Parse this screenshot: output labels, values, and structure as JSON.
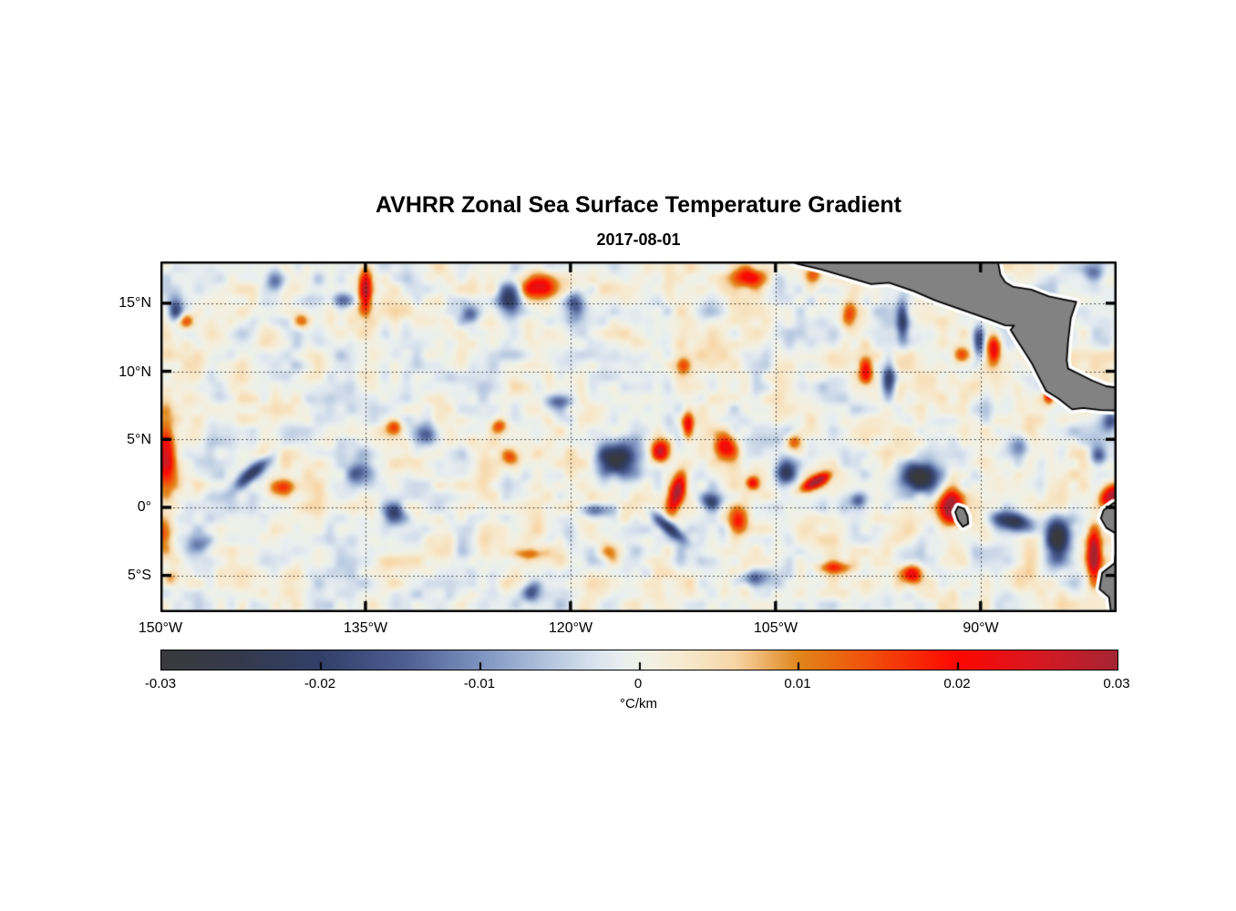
{
  "chart_data": {
    "type": "heatmap",
    "title": "AVHRR Zonal Sea Surface Temperature Gradient",
    "subtitle": "2017-08-01",
    "value_units": "°C/km",
    "value_range": [
      -0.03,
      0.03
    ],
    "extent": {
      "lon_min": -150,
      "lon_max": -80.05,
      "lat_min": -7.7,
      "lat_max": 18.07
    },
    "x_axis": {
      "ticks": [
        {
          "lon": -150,
          "label": "150°W"
        },
        {
          "lon": -135,
          "label": "135°W"
        },
        {
          "lon": -120,
          "label": "120°W"
        },
        {
          "lon": -105,
          "label": "105°W"
        },
        {
          "lon": -90,
          "label": "90°W"
        }
      ]
    },
    "y_axis": {
      "ticks": [
        {
          "lat": 15,
          "label": "15°N"
        },
        {
          "lat": 10,
          "label": "10°N"
        },
        {
          "lat": 5,
          "label": "5°N"
        },
        {
          "lat": 0,
          "label": "0°"
        },
        {
          "lat": -5,
          "label": "5°S"
        }
      ]
    },
    "grid": {
      "lon_lines": [
        -135,
        -120,
        -105,
        -90
      ],
      "lat_lines": [
        15,
        10,
        5,
        0,
        -5
      ]
    },
    "colorbar": {
      "tick_labels": [
        "-0.03",
        "-0.02",
        "-0.01",
        "0",
        "0.01",
        "0.02",
        "0.03"
      ],
      "tick_values": [
        -0.03,
        -0.02,
        -0.01,
        0,
        0.01,
        0.02,
        0.03
      ],
      "interior_tick_values": [
        -0.02,
        -0.01,
        0,
        0.01,
        0.02
      ],
      "unit_label": "°C/km"
    },
    "colormap": [
      {
        "v": -0.03,
        "c": "#3a3a3c"
      },
      {
        "v": -0.025,
        "c": "#343a4d"
      },
      {
        "v": -0.02,
        "c": "#324069"
      },
      {
        "v": -0.015,
        "c": "#4b5c90"
      },
      {
        "v": -0.01,
        "c": "#7e93c0"
      },
      {
        "v": -0.006,
        "c": "#aec2dc"
      },
      {
        "v": -0.003,
        "c": "#d7e1ed"
      },
      {
        "v": -0.0012,
        "c": "#e8eef0"
      },
      {
        "v": 0.0,
        "c": "#eef1e8"
      },
      {
        "v": 0.0012,
        "c": "#f4efdf"
      },
      {
        "v": 0.003,
        "c": "#f7e8cb"
      },
      {
        "v": 0.006,
        "c": "#f7d6a7"
      },
      {
        "v": 0.01,
        "c": "#e1861a"
      },
      {
        "v": 0.014,
        "c": "#f0540c"
      },
      {
        "v": 0.02,
        "c": "#fd0700"
      },
      {
        "v": 0.025,
        "c": "#d61822"
      },
      {
        "v": 0.03,
        "c": "#a62532"
      }
    ],
    "background_noise": {
      "seed": 20170801,
      "octaves": [
        {
          "wavelength_deg": 1.8,
          "amp": 0.004
        },
        {
          "wavelength_deg": 0.8,
          "amp": 0.003
        }
      ]
    },
    "features": [
      {
        "lon": -135.0,
        "lat": 16.0,
        "sx": 0.35,
        "sy": 1.1,
        "rot": 0,
        "v": 0.032
      },
      {
        "lon": -122.4,
        "lat": 16.2,
        "sx": 0.9,
        "sy": 0.7,
        "rot": 0,
        "v": 0.022
      },
      {
        "lon": -124.5,
        "lat": 15.3,
        "sx": 0.6,
        "sy": 0.9,
        "rot": 0,
        "v": -0.02
      },
      {
        "lon": -119.6,
        "lat": 14.9,
        "sx": 0.5,
        "sy": 0.8,
        "rot": 0,
        "v": -0.016
      },
      {
        "lon": -107.0,
        "lat": 16.9,
        "sx": 0.8,
        "sy": 0.5,
        "rot": 0,
        "v": 0.02
      },
      {
        "lon": -102.2,
        "lat": 17.2,
        "sx": 0.5,
        "sy": 0.5,
        "rot": 0,
        "v": 0.014
      },
      {
        "lon": -149.6,
        "lat": 3.8,
        "sx": 0.5,
        "sy": 1.7,
        "rot": 0,
        "v": 0.027
      },
      {
        "lon": -149.7,
        "lat": -1.9,
        "sx": 0.4,
        "sy": 0.8,
        "rot": 0,
        "v": 0.016
      },
      {
        "lon": -143.2,
        "lat": 2.6,
        "sx": 1.2,
        "sy": 0.35,
        "rot": 40,
        "v": -0.022
      },
      {
        "lon": -141.1,
        "lat": 1.5,
        "sx": 0.8,
        "sy": 0.45,
        "rot": 0,
        "v": 0.017
      },
      {
        "lon": -135.4,
        "lat": 2.5,
        "sx": 0.6,
        "sy": 0.6,
        "rot": 0,
        "v": -0.014
      },
      {
        "lon": -132.9,
        "lat": -0.5,
        "sx": 0.55,
        "sy": 0.55,
        "rot": 0,
        "v": -0.02
      },
      {
        "lon": -130.5,
        "lat": 5.4,
        "sx": 0.5,
        "sy": 0.5,
        "rot": 0,
        "v": -0.015
      },
      {
        "lon": -132.9,
        "lat": 6.0,
        "sx": 0.4,
        "sy": 0.4,
        "rot": 0,
        "v": 0.013
      },
      {
        "lon": -125.2,
        "lat": 6.0,
        "sx": 0.4,
        "sy": 0.4,
        "rot": 0,
        "v": 0.015
      },
      {
        "lon": -124.4,
        "lat": 3.7,
        "sx": 0.4,
        "sy": 0.4,
        "rot": 0,
        "v": 0.012
      },
      {
        "lon": -116.6,
        "lat": 3.5,
        "sx": 1.1,
        "sy": 0.85,
        "rot": 0,
        "v": -0.027
      },
      {
        "lon": -113.4,
        "lat": 4.1,
        "sx": 0.5,
        "sy": 0.6,
        "rot": 0,
        "v": 0.028
      },
      {
        "lon": -112.2,
        "lat": 1.1,
        "sx": 0.4,
        "sy": 1.0,
        "rot": -15,
        "v": 0.032
      },
      {
        "lon": -112.8,
        "lat": -1.5,
        "sx": 1.1,
        "sy": 0.32,
        "rot": -40,
        "v": -0.022
      },
      {
        "lon": -109.7,
        "lat": 0.5,
        "sx": 0.5,
        "sy": 0.45,
        "rot": 0,
        "v": -0.02
      },
      {
        "lon": -107.8,
        "lat": -1.0,
        "sx": 0.5,
        "sy": 0.8,
        "rot": 0,
        "v": 0.022
      },
      {
        "lon": -108.7,
        "lat": 4.5,
        "sx": 0.6,
        "sy": 0.7,
        "rot": 0,
        "v": 0.024
      },
      {
        "lon": -111.4,
        "lat": 6.0,
        "sx": 0.3,
        "sy": 0.7,
        "rot": 0,
        "v": 0.024
      },
      {
        "lon": -104.2,
        "lat": 2.6,
        "sx": 0.55,
        "sy": 0.75,
        "rot": 0,
        "v": -0.026
      },
      {
        "lon": -102.0,
        "lat": 1.9,
        "sx": 0.8,
        "sy": 0.28,
        "rot": 28,
        "v": 0.03
      },
      {
        "lon": -99.0,
        "lat": 0.5,
        "sx": 0.4,
        "sy": 0.4,
        "rot": 0,
        "v": -0.014
      },
      {
        "lon": -94.5,
        "lat": 2.3,
        "sx": 0.9,
        "sy": 0.75,
        "rot": 0,
        "v": -0.03
      },
      {
        "lon": -92.2,
        "lat": 0.0,
        "sx": 0.6,
        "sy": 0.85,
        "rot": 0,
        "v": 0.035
      },
      {
        "lon": -87.7,
        "lat": -1.0,
        "sx": 1.0,
        "sy": 0.45,
        "rot": -10,
        "v": -0.026
      },
      {
        "lon": -84.3,
        "lat": -2.3,
        "sx": 0.6,
        "sy": 1.1,
        "rot": 0,
        "v": -0.028
      },
      {
        "lon": -81.7,
        "lat": -3.5,
        "sx": 0.35,
        "sy": 1.3,
        "rot": 0,
        "v": 0.034
      },
      {
        "lon": -95.0,
        "lat": -4.9,
        "sx": 0.5,
        "sy": 0.5,
        "rot": 0,
        "v": 0.022
      },
      {
        "lon": -100.7,
        "lat": -4.4,
        "sx": 0.9,
        "sy": 0.3,
        "rot": 0,
        "v": 0.014
      },
      {
        "lon": -120.9,
        "lat": 7.8,
        "sx": 0.7,
        "sy": 0.35,
        "rot": 0,
        "v": -0.012
      },
      {
        "lon": -111.7,
        "lat": 10.4,
        "sx": 0.4,
        "sy": 0.4,
        "rot": 0,
        "v": 0.014
      },
      {
        "lon": -98.4,
        "lat": 10.0,
        "sx": 0.35,
        "sy": 0.8,
        "rot": 0,
        "v": 0.02
      },
      {
        "lon": -96.7,
        "lat": 9.5,
        "sx": 0.35,
        "sy": 0.9,
        "rot": 0,
        "v": -0.02
      },
      {
        "lon": -89.0,
        "lat": 11.6,
        "sx": 0.35,
        "sy": 0.8,
        "rot": 0,
        "v": 0.024
      },
      {
        "lon": -90.1,
        "lat": 12.2,
        "sx": 0.3,
        "sy": 0.8,
        "rot": 0,
        "v": -0.02
      },
      {
        "lon": -95.7,
        "lat": 13.7,
        "sx": 0.3,
        "sy": 1.1,
        "rot": 0,
        "v": -0.018
      },
      {
        "lon": -99.7,
        "lat": 14.2,
        "sx": 0.4,
        "sy": 0.7,
        "rot": 0,
        "v": 0.016
      },
      {
        "lon": -148.1,
        "lat": 13.7,
        "sx": 0.4,
        "sy": 0.4,
        "rot": 0,
        "v": 0.015
      },
      {
        "lon": -148.9,
        "lat": 14.5,
        "sx": 0.4,
        "sy": 0.7,
        "rot": 0,
        "v": -0.018
      },
      {
        "lon": -141.6,
        "lat": 16.7,
        "sx": 0.45,
        "sy": 0.45,
        "rot": 0,
        "v": -0.016
      },
      {
        "lon": -136.7,
        "lat": 15.2,
        "sx": 0.5,
        "sy": 0.4,
        "rot": 0,
        "v": -0.016
      },
      {
        "lon": -139.7,
        "lat": 13.7,
        "sx": 0.4,
        "sy": 0.4,
        "rot": 0,
        "v": 0.012
      },
      {
        "lon": -127.3,
        "lat": 14.2,
        "sx": 0.45,
        "sy": 0.45,
        "rot": 0,
        "v": -0.013
      },
      {
        "lon": -122.8,
        "lat": -6.2,
        "sx": 0.5,
        "sy": 0.5,
        "rot": 0,
        "v": -0.016
      },
      {
        "lon": -118.1,
        "lat": -0.2,
        "sx": 0.9,
        "sy": 0.35,
        "rot": 0,
        "v": -0.016
      },
      {
        "lon": -117.0,
        "lat": -3.3,
        "sx": 0.5,
        "sy": 0.5,
        "rot": 0,
        "v": 0.014
      },
      {
        "lon": -106.7,
        "lat": -5.2,
        "sx": 0.8,
        "sy": 0.4,
        "rot": 0,
        "v": -0.014
      },
      {
        "lon": -106.7,
        "lat": 1.8,
        "sx": 0.3,
        "sy": 0.3,
        "rot": 0,
        "v": 0.018
      },
      {
        "lon": -103.7,
        "lat": 4.8,
        "sx": 0.4,
        "sy": 0.4,
        "rot": 0,
        "v": 0.016
      },
      {
        "lon": -85.0,
        "lat": 8.6,
        "sx": 0.25,
        "sy": 0.6,
        "rot": 0,
        "v": 0.028
      },
      {
        "lon": -87.1,
        "lat": 4.5,
        "sx": 0.6,
        "sy": 0.6,
        "rot": 0,
        "v": -0.012
      },
      {
        "lon": -80.5,
        "lat": 6.4,
        "sx": 0.5,
        "sy": 0.5,
        "rot": 0,
        "v": -0.02
      },
      {
        "lon": -81.3,
        "lat": 3.8,
        "sx": 0.5,
        "sy": 0.5,
        "rot": 0,
        "v": -0.018
      },
      {
        "lon": -147.2,
        "lat": -2.7,
        "sx": 0.5,
        "sy": 0.5,
        "rot": 0,
        "v": -0.012
      },
      {
        "lon": -149.3,
        "lat": -5.2,
        "sx": 0.4,
        "sy": 0.4,
        "rot": 0,
        "v": 0.012
      },
      {
        "lon": -123.0,
        "lat": -3.4,
        "sx": 0.8,
        "sy": 0.3,
        "rot": 0,
        "v": 0.012
      },
      {
        "lon": -81.7,
        "lat": 17.2,
        "sx": 0.5,
        "sy": 0.5,
        "rot": 0,
        "v": -0.012
      },
      {
        "lon": -91.4,
        "lat": 11.2,
        "sx": 0.45,
        "sy": 0.45,
        "rot": 0,
        "v": 0.018
      },
      {
        "lon": -80.1,
        "lat": 1.1,
        "sx": 0.45,
        "sy": 0.45,
        "rot": 0,
        "v": 0.02
      },
      {
        "lon": -80.7,
        "lat": 0.6,
        "sx": 0.5,
        "sy": 0.5,
        "rot": 0,
        "v": 0.02
      }
    ],
    "geography": {
      "land_fill": "#828282",
      "coast_color": "#000000",
      "halo_color": "#ffffff",
      "polygons": {
        "central_america": [
          [
            -104.7,
            18.4
          ],
          [
            -88.8,
            18.4
          ],
          [
            -88.55,
            17.1
          ],
          [
            -88.2,
            16.55
          ],
          [
            -87.6,
            16.2
          ],
          [
            -86.3,
            16.0
          ],
          [
            -85.0,
            15.5
          ],
          [
            -83.8,
            15.25
          ],
          [
            -83.0,
            15.1
          ],
          [
            -83.4,
            13.9
          ],
          [
            -83.6,
            12.2
          ],
          [
            -83.7,
            10.8
          ],
          [
            -83.6,
            10.2
          ],
          [
            -83.0,
            9.9
          ],
          [
            -81.8,
            9.3
          ],
          [
            -80.8,
            8.9
          ],
          [
            -79.3,
            8.7
          ],
          [
            -79.3,
            7.1
          ],
          [
            -81.2,
            7.15
          ],
          [
            -82.5,
            7.3
          ],
          [
            -83.3,
            7.2
          ],
          [
            -84.3,
            8.0
          ],
          [
            -85.2,
            8.55
          ],
          [
            -85.8,
            9.7
          ],
          [
            -86.2,
            10.5
          ],
          [
            -86.7,
            11.3
          ],
          [
            -87.4,
            12.4
          ],
          [
            -87.8,
            13.05
          ],
          [
            -87.55,
            13.35
          ],
          [
            -88.2,
            13.38
          ],
          [
            -89.3,
            13.8
          ],
          [
            -91.3,
            14.5
          ],
          [
            -93.3,
            15.2
          ],
          [
            -94.8,
            15.85
          ],
          [
            -95.8,
            16.2
          ],
          [
            -96.7,
            16.5
          ],
          [
            -98.0,
            16.4
          ],
          [
            -99.7,
            16.9
          ],
          [
            -101.7,
            17.5
          ],
          [
            -103.4,
            17.9
          ]
        ],
        "south_america": [
          [
            -79.3,
            0.6
          ],
          [
            -80.3,
            0.3
          ],
          [
            -81.0,
            -0.2
          ],
          [
            -81.2,
            -0.8
          ],
          [
            -80.8,
            -1.5
          ],
          [
            -80.15,
            -1.9
          ],
          [
            -80.1,
            -3.2
          ],
          [
            -80.2,
            -4.1
          ],
          [
            -81.1,
            -4.8
          ],
          [
            -81.3,
            -6.0
          ],
          [
            -80.6,
            -6.6
          ],
          [
            -80.4,
            -8.2
          ],
          [
            -79.3,
            -8.2
          ]
        ],
        "galapagos": [
          [
            -91.65,
            0.05
          ],
          [
            -91.2,
            -0.1
          ],
          [
            -90.95,
            -0.65
          ],
          [
            -90.9,
            -1.2
          ],
          [
            -91.3,
            -1.42
          ],
          [
            -91.65,
            -0.95
          ],
          [
            -91.85,
            -0.35
          ]
        ]
      }
    }
  }
}
